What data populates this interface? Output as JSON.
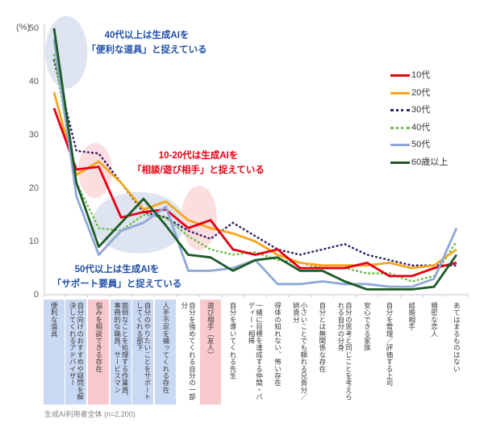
{
  "chart_data": {
    "type": "line",
    "title": "",
    "ylabel": "(%)",
    "ylim": [
      0,
      50
    ],
    "yticks": [
      0,
      10,
      20,
      30,
      40,
      50
    ],
    "legend_position": "right",
    "grid": false,
    "categories": [
      {
        "label": "便利な道具",
        "highlight": "blue"
      },
      {
        "label": "自分向けのおすすめや疑問を解決してくれるアドバイザー",
        "highlight": "blue"
      },
      {
        "label": "悩みを相談できる存在",
        "highlight": "pink"
      },
      {
        "label": "面倒なことを処理する作業員、事務的な職員、サービスマン",
        "highlight": "blue"
      },
      {
        "label": "自分のやりたいことをサポートしてくれる部下",
        "highlight": "blue"
      },
      {
        "label": "人手不足を補ってくれる存在",
        "highlight": "blue"
      },
      {
        "label": "自分を強めてくれる自分の一部分",
        "highlight": null
      },
      {
        "label": "遊び相手（友人）",
        "highlight": "pink"
      },
      {
        "label": "自分を導いてくれる先生",
        "highlight": null
      },
      {
        "label": "一緒に目標を達成する仲間・バディー・相棒",
        "highlight": null
      },
      {
        "label": "得体の知れない、怖い存在",
        "highlight": null
      },
      {
        "label": "小さいことでも頼れる兄貴分／姉貴分",
        "highlight": null
      },
      {
        "label": "自分とは無関係な存在",
        "highlight": null
      },
      {
        "label": "自分の思考と同じことを考えられる自分の分身",
        "highlight": null
      },
      {
        "label": "安心できる家族",
        "highlight": null
      },
      {
        "label": "自分を管理／評価する上司",
        "highlight": null
      },
      {
        "label": "結婚相手",
        "highlight": null
      },
      {
        "label": "親密な恋人",
        "highlight": null
      },
      {
        "label": "あてはまるものはない",
        "highlight": null
      }
    ],
    "series": [
      {
        "name": "10代",
        "color": "#E60012",
        "style": "solid",
        "values": [
          35,
          23.5,
          24,
          14.5,
          15.5,
          16,
          12.5,
          14,
          8.5,
          7.5,
          8.5,
          5,
          5,
          5,
          6,
          3.5,
          3.5,
          5,
          6
        ]
      },
      {
        "name": "20代",
        "color": "#F4A71D",
        "style": "solid",
        "values": [
          38,
          22.5,
          25,
          21,
          16,
          17.5,
          14,
          12.5,
          11.5,
          10,
          7.5,
          6,
          5.5,
          5.5,
          5.5,
          6,
          5,
          5.5,
          8.5
        ]
      },
      {
        "name": "30代",
        "color": "#38226B",
        "style": "dotted",
        "values": [
          44,
          27,
          26.5,
          21,
          15.5,
          14.5,
          12,
          10.5,
          13.5,
          11,
          8.5,
          7.5,
          8.5,
          9.5,
          7.5,
          6.5,
          5.5,
          5.5,
          5.5
        ]
      },
      {
        "name": "40代",
        "color": "#6CBF47",
        "style": "dotted",
        "values": [
          45,
          21,
          12.5,
          12,
          15,
          14.5,
          11,
          8.5,
          7.5,
          8,
          6.5,
          6,
          5,
          5,
          4,
          4,
          2.5,
          3.5,
          10
        ]
      },
      {
        "name": "50代",
        "color": "#8FA8D8",
        "style": "solid",
        "values": [
          48,
          18.5,
          7.5,
          12,
          13.5,
          16.5,
          4.5,
          4.5,
          5,
          6.5,
          2,
          2,
          2.5,
          2,
          2,
          1.5,
          1.5,
          3,
          12.5
        ]
      },
      {
        "name": "60歳以上",
        "color": "#1C5B26",
        "style": "solid",
        "values": [
          50,
          21,
          9,
          13.5,
          18,
          13,
          7.5,
          7,
          4.5,
          6.5,
          7,
          4.5,
          4.5,
          2.5,
          1,
          1,
          1,
          1.5,
          7.5
        ]
      }
    ],
    "highlight_ellipses": [
      {
        "x_cat": 0.55,
        "value": 45.5,
        "rx": 26,
        "ry": 45,
        "color": "blue"
      },
      {
        "x_cat": 1.84,
        "value": 23.3,
        "rx": 21,
        "ry": 34,
        "color": "pink"
      },
      {
        "x_cat": 3.79,
        "value": 13.5,
        "rx": 58,
        "ry": 38,
        "color": "blue"
      },
      {
        "x_cat": 6.49,
        "value": 14.4,
        "rx": 22,
        "ry": 40,
        "color": "pink"
      }
    ]
  },
  "annotations": [
    {
      "text": "40代以上は生成AIを\n「便利な道具」と捉えている",
      "color": "#1F4FA8"
    },
    {
      "text": "10-20代は生成AIを\n「相談/遊び相手」と捉えている",
      "color": "#E60012"
    },
    {
      "text": "50代以上は生成AIを\n「サポート要員」と捉えている",
      "color": "#1F4FA8"
    }
  ],
  "footnote": "生成AI利用者全体 (n=2,200)",
  "colors": {
    "axis": "#C6C6C6",
    "tick_text": "#595959",
    "strip_blue": "#C9D9F3",
    "strip_pink": "#F8C9CD",
    "ellipse_blue": "#DEE4F0",
    "ellipse_pink": "#FBDEDF"
  }
}
